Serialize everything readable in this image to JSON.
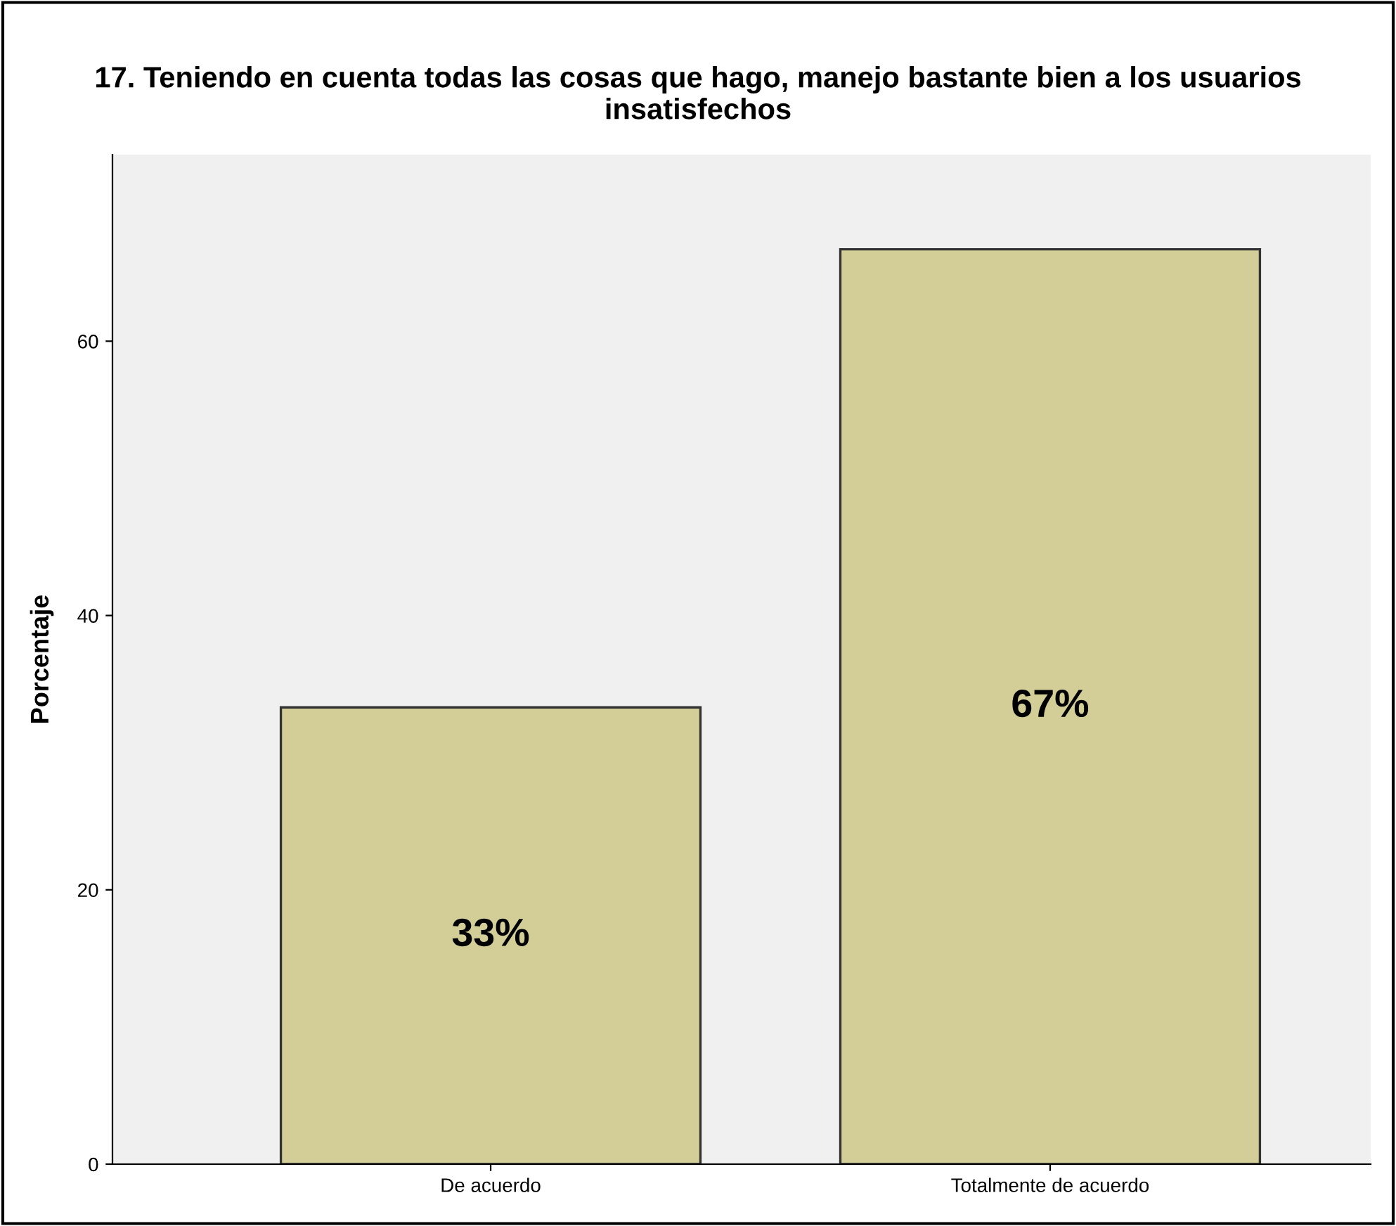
{
  "chart_data": {
    "type": "bar",
    "title": "17. Teniendo en cuenta todas las cosas que hago, manejo bastante bien a los usuarios insatisfechos",
    "ylabel": "Porcentaje",
    "categories": [
      "De acuerdo",
      "Totalmente de acuerdo"
    ],
    "values": [
      33.3,
      66.7
    ],
    "value_labels": [
      "33%",
      "67%"
    ],
    "color": "#d3ce97",
    "ylim": [
      0,
      73.6
    ],
    "yticks": [
      0,
      20,
      40,
      60
    ],
    "grid": false
  }
}
